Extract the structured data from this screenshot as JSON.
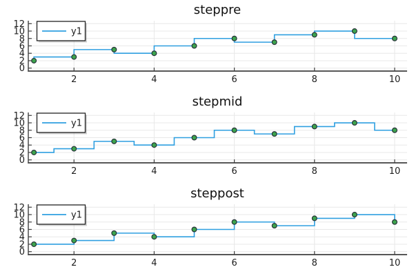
{
  "figure": {
    "legend_label": "y1",
    "line_color": "#2E9FE0",
    "marker_fill": "#3DA44D",
    "marker_stroke": "#263238",
    "grid_color": "#e8e8e8",
    "spine_color": "#3f3f3f",
    "tick_label_color": "#1c1c1c",
    "title_color": "#111111",
    "background": "#ffffff"
  },
  "chart_data": [
    {
      "type": "line",
      "variant": "pre",
      "title": "steppre",
      "x": [
        1,
        2,
        3,
        4,
        5,
        6,
        7,
        8,
        9,
        10
      ],
      "values": [
        2,
        3,
        5,
        4,
        6,
        8,
        7,
        9,
        10,
        8
      ],
      "xticks": [
        2,
        4,
        6,
        8,
        10
      ],
      "yticks": [
        0,
        2,
        4,
        6,
        8,
        10,
        12
      ],
      "xlim": [
        0.86,
        10.31
      ],
      "ylim": [
        -0.8,
        12.8
      ],
      "legend": "y1",
      "grid": true,
      "legend_position": "top-left"
    },
    {
      "type": "line",
      "variant": "mid",
      "title": "stepmid",
      "x": [
        1,
        2,
        3,
        4,
        5,
        6,
        7,
        8,
        9,
        10
      ],
      "values": [
        2,
        3,
        5,
        4,
        6,
        8,
        7,
        9,
        10,
        8
      ],
      "xticks": [
        2,
        4,
        6,
        8,
        10
      ],
      "yticks": [
        0,
        2,
        4,
        6,
        8,
        10,
        12
      ],
      "xlim": [
        0.86,
        10.31
      ],
      "ylim": [
        -0.8,
        12.8
      ],
      "legend": "y1",
      "grid": true,
      "legend_position": "top-left"
    },
    {
      "type": "line",
      "variant": "post",
      "title": "steppost",
      "x": [
        1,
        2,
        3,
        4,
        5,
        6,
        7,
        8,
        9,
        10
      ],
      "values": [
        2,
        3,
        5,
        4,
        6,
        8,
        7,
        9,
        10,
        8
      ],
      "xticks": [
        2,
        4,
        6,
        8,
        10
      ],
      "yticks": [
        0,
        2,
        4,
        6,
        8,
        10,
        12
      ],
      "xlim": [
        0.86,
        10.31
      ],
      "ylim": [
        -0.8,
        12.8
      ],
      "legend": "y1",
      "grid": true,
      "legend_position": "top-left"
    }
  ]
}
